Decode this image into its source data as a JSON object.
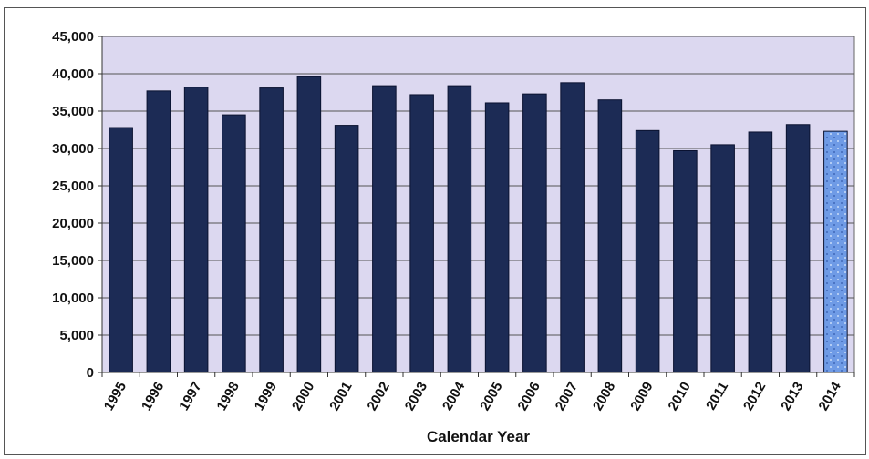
{
  "chart_data": {
    "type": "bar",
    "title": "",
    "xlabel": "Calendar Year",
    "ylabel": "",
    "ylim": [
      0,
      45000
    ],
    "yticks": [
      "0",
      "5,000",
      "10,000",
      "15,000",
      "20,000",
      "25,000",
      "30,000",
      "35,000",
      "40,000",
      "45,000"
    ],
    "categories": [
      "1995",
      "1996",
      "1997",
      "1998",
      "1999",
      "2000",
      "2001",
      "2002",
      "2003",
      "2004",
      "2005",
      "2006",
      "2007",
      "2008",
      "2009",
      "2010",
      "2011",
      "2012",
      "2013",
      "2014"
    ],
    "values": [
      32800,
      37700,
      38200,
      34500,
      38100,
      39600,
      33100,
      38400,
      37200,
      38400,
      36100,
      37300,
      38800,
      36500,
      32400,
      29700,
      30500,
      32200,
      33200,
      32300
    ],
    "grid": true,
    "legend": "none",
    "colors": {
      "bar": "#1c2b55",
      "bar_highlight": "#6f9be6",
      "plot_background": "#dcd8f0",
      "gridline": "#555555"
    },
    "highlighted_category": "2014"
  }
}
